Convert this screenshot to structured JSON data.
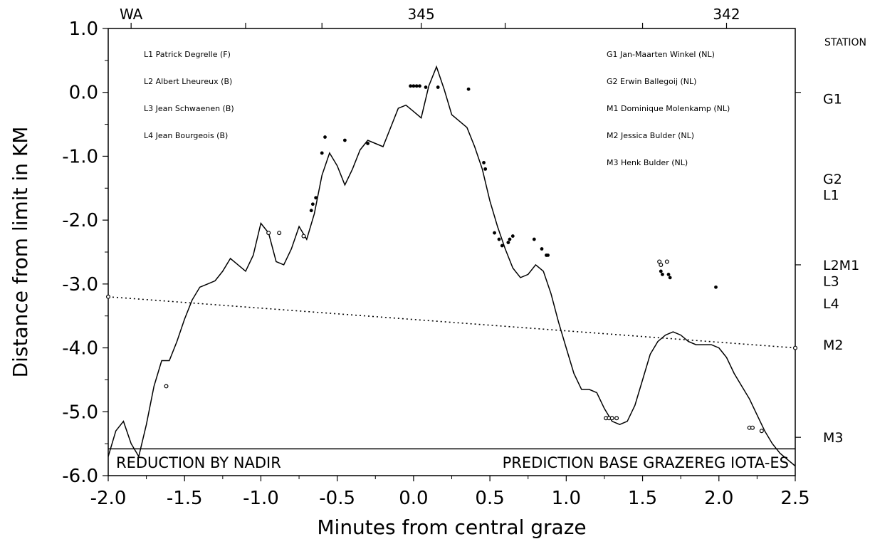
{
  "chart_data": {
    "type": "line",
    "xlabel": "Minutes from central graze",
    "ylabel": "Distance from limit in KM",
    "xlim": [
      -2.0,
      2.5
    ],
    "ylim": [
      -6.0,
      1.0
    ],
    "x_ticks": [
      "-2.0",
      "-1.5",
      "-1.0",
      "-0.5",
      "0.0",
      "0.5",
      "1.0",
      "1.5",
      "2.0",
      "2.5"
    ],
    "y_ticks": [
      "1.0",
      "0.0",
      "-1.0",
      "-2.0",
      "-3.0",
      "-4.0",
      "-5.0",
      "-6.0"
    ],
    "top_labels": [
      {
        "text": "WA",
        "x": -1.85
      },
      {
        "text": "345",
        "x": 0.05
      },
      {
        "text": "342",
        "x": 2.05
      }
    ],
    "legend_left": [
      "L1 Patrick Degrelle (F)",
      "L2 Albert Lheureux (B)",
      "L3 Jean Schwaenen (B)",
      "L4 Jean Bourgeois (B)"
    ],
    "legend_right": [
      "G1 Jan-Maarten Winkel (NL)",
      "G2 Erwin Ballegoij (NL)",
      "M1 Dominique Molenkamp (NL)",
      "M2 Jessica Bulder (NL)",
      "M3 Henk Bulder (NL)"
    ],
    "station_header": "STATION",
    "stations": [
      {
        "label": "G1",
        "y": -0.1
      },
      {
        "label": "G2",
        "y": -1.35
      },
      {
        "label": "L1",
        "y": -1.6
      },
      {
        "label": "L2M1",
        "y": -2.7
      },
      {
        "label": "L3",
        "y": -2.95
      },
      {
        "label": "L4",
        "y": -3.3
      },
      {
        "label": "M2",
        "y": -3.95
      },
      {
        "label": "M3",
        "y": -5.4
      }
    ],
    "footer_left": "REDUCTION BY NADIR",
    "footer_right": "PREDICTION BASE GRAZEREG IOTA-ES",
    "series": [
      {
        "style": "solid",
        "x": [
          -2.0,
          -1.95,
          -1.9,
          -1.85,
          -1.8,
          -1.75,
          -1.7,
          -1.65,
          -1.6,
          -1.55,
          -1.5,
          -1.45,
          -1.4,
          -1.35,
          -1.3,
          -1.25,
          -1.2,
          -1.15,
          -1.1,
          -1.05,
          -1.0,
          -0.95,
          -0.9,
          -0.85,
          -0.8,
          -0.75,
          -0.7,
          -0.65,
          -0.6,
          -0.55,
          -0.5,
          -0.45,
          -0.4,
          -0.35,
          -0.3,
          -0.25,
          -0.2,
          -0.15,
          -0.1,
          -0.05,
          0.0,
          0.05,
          0.1,
          0.15,
          0.2,
          0.25,
          0.3,
          0.35,
          0.4,
          0.45,
          0.5,
          0.55,
          0.6,
          0.65,
          0.7,
          0.75,
          0.8,
          0.85,
          0.9,
          0.95,
          1.0,
          1.05,
          1.1,
          1.15,
          1.2,
          1.25,
          1.3,
          1.35,
          1.4,
          1.45,
          1.5,
          1.55,
          1.6,
          1.65,
          1.7,
          1.75,
          1.8,
          1.85,
          1.9,
          1.95,
          2.0,
          2.05,
          2.1,
          2.15,
          2.2,
          2.25,
          2.3,
          2.35,
          2.4,
          2.45,
          2.5
        ],
        "y": [
          -5.7,
          -5.3,
          -5.15,
          -5.5,
          -5.7,
          -5.2,
          -4.6,
          -4.2,
          -4.2,
          -3.9,
          -3.55,
          -3.25,
          -3.05,
          -3.0,
          -2.95,
          -2.8,
          -2.6,
          -2.7,
          -2.8,
          -2.55,
          -2.05,
          -2.2,
          -2.65,
          -2.7,
          -2.45,
          -2.1,
          -2.3,
          -1.9,
          -1.3,
          -0.95,
          -1.15,
          -1.45,
          -1.2,
          -0.9,
          -0.75,
          -0.8,
          -0.85,
          -0.55,
          -0.25,
          -0.2,
          -0.3,
          -0.4,
          0.1,
          0.4,
          0.05,
          -0.35,
          -0.45,
          -0.55,
          -0.85,
          -1.2,
          -1.7,
          -2.1,
          -2.45,
          -2.75,
          -2.9,
          -2.85,
          -2.7,
          -2.8,
          -3.15,
          -3.6,
          -4.0,
          -4.4,
          -4.65,
          -4.65,
          -4.7,
          -4.95,
          -5.15,
          -5.2,
          -5.15,
          -4.9,
          -4.5,
          -4.1,
          -3.9,
          -3.8,
          -3.75,
          -3.8,
          -3.9,
          -3.95,
          -3.95,
          -3.95,
          -4.0,
          -4.15,
          -4.4,
          -4.6,
          -4.8,
          -5.05,
          -5.3,
          -5.5,
          -5.65,
          -5.75,
          -5.85
        ]
      },
      {
        "style": "dotted",
        "x": [
          -2.0,
          2.5
        ],
        "y": [
          -3.2,
          -4.0
        ]
      }
    ],
    "observations_filled": [
      [
        -0.6,
        -0.95
      ],
      [
        -0.58,
        -0.7
      ],
      [
        -0.64,
        -1.65
      ],
      [
        -0.66,
        -1.75
      ],
      [
        -0.67,
        -1.85
      ],
      [
        -0.45,
        -0.75
      ],
      [
        -0.3,
        -0.8
      ],
      [
        -0.02,
        0.1
      ],
      [
        0.0,
        0.1
      ],
      [
        0.02,
        0.1
      ],
      [
        0.04,
        0.1
      ],
      [
        0.08,
        0.08
      ],
      [
        0.16,
        0.08
      ],
      [
        0.36,
        0.05
      ],
      [
        0.46,
        -1.1
      ],
      [
        0.47,
        -1.2
      ],
      [
        0.53,
        -2.2
      ],
      [
        0.56,
        -2.3
      ],
      [
        0.58,
        -2.4
      ],
      [
        0.62,
        -2.35
      ],
      [
        0.63,
        -2.3
      ],
      [
        0.65,
        -2.25
      ],
      [
        0.79,
        -2.3
      ],
      [
        0.84,
        -2.45
      ],
      [
        0.87,
        -2.55
      ],
      [
        0.88,
        -2.55
      ],
      [
        1.62,
        -2.8
      ],
      [
        1.63,
        -2.85
      ],
      [
        1.67,
        -2.85
      ],
      [
        1.68,
        -2.9
      ],
      [
        1.98,
        -3.05
      ]
    ],
    "observations_open": [
      [
        -2.0,
        -3.2
      ],
      [
        -1.62,
        -4.6
      ],
      [
        -0.95,
        -2.2
      ],
      [
        -0.88,
        -2.2
      ],
      [
        -0.72,
        -2.25
      ],
      [
        1.26,
        -5.1
      ],
      [
        1.28,
        -5.1
      ],
      [
        1.3,
        -5.1
      ],
      [
        1.33,
        -5.1
      ],
      [
        1.61,
        -2.65
      ],
      [
        1.62,
        -2.7
      ],
      [
        1.66,
        -2.65
      ],
      [
        2.2,
        -5.25
      ],
      [
        2.22,
        -5.25
      ],
      [
        2.28,
        -5.3
      ],
      [
        2.5,
        -4.0
      ]
    ]
  }
}
